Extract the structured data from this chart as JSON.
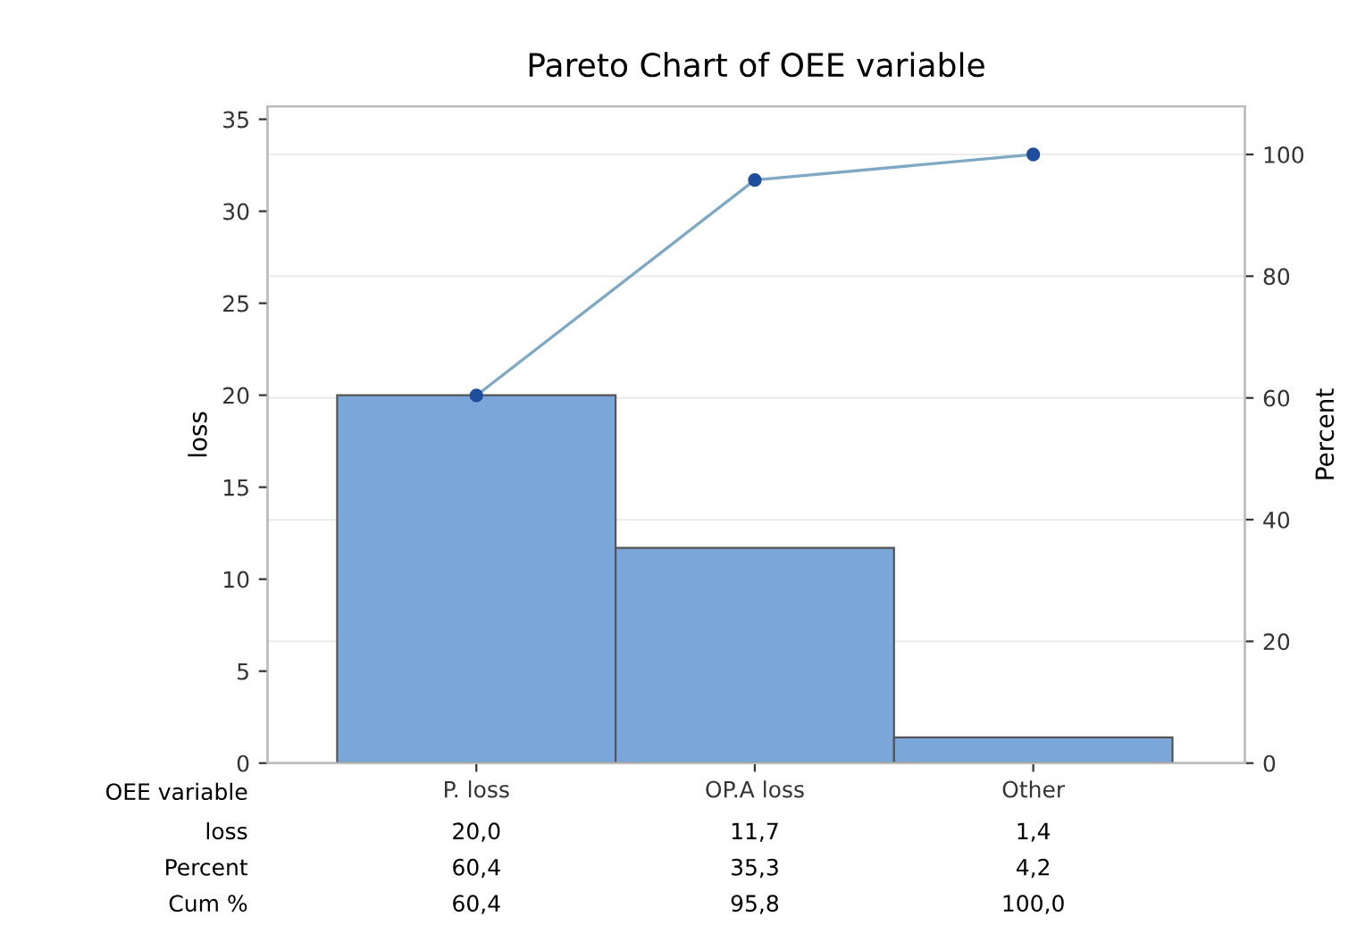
{
  "chart_data": {
    "type": "bar",
    "title": "Pareto Chart of OEE variable",
    "xlabel": "OEE variable",
    "ylabel": "loss",
    "y2label": "Percent",
    "categories": [
      "P. loss",
      "OP.A loss",
      "Other"
    ],
    "series": [
      {
        "color": "#7ba6d9",
        "values": [
          20.0,
          11.7,
          1.4
        ],
        "value_labels": [
          "20,0",
          "11,7",
          "1,4"
        ]
      },
      {
        "type": "line",
        "axis": "y2",
        "color": "#7fa8c4",
        "marker": "circle",
        "values": [
          60.4,
          95.8,
          100.0
        ],
        "value_labels": [
          "60,4",
          "95,8",
          "100,0"
        ]
      }
    ],
    "annotations": [
      "loss",
      "Percent",
      "60,4",
      "35,3",
      "4,2",
      "Cum %"
    ],
    "ylim": [
      0,
      35.7
    ],
    "yticks": [
      0,
      5,
      10,
      15,
      20,
      25,
      30,
      35
    ],
    "y2lim": [
      0,
      107.9
    ],
    "y2ticks": [
      0,
      20,
      40,
      60,
      80,
      100
    ],
    "grid": true
  }
}
